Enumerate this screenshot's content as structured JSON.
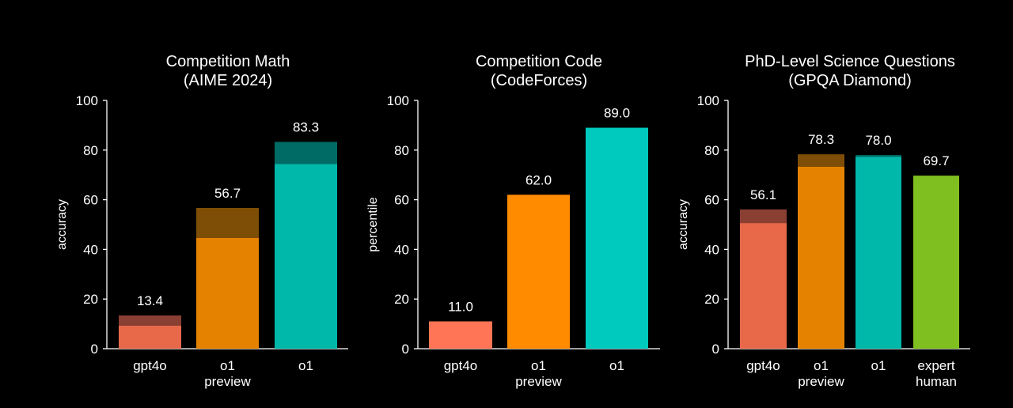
{
  "chart_data": [
    {
      "type": "bar",
      "title": [
        "Competition Math",
        "(AIME 2024)"
      ],
      "ylabel": "accuracy",
      "ylim": [
        0,
        100
      ],
      "yticks": [
        0,
        20,
        40,
        60,
        80,
        100
      ],
      "categories": [
        [
          "gpt4o"
        ],
        [
          "o1",
          "preview"
        ],
        [
          "o1"
        ]
      ],
      "values": [
        13.4,
        56.7,
        83.3
      ],
      "base_values": [
        9.3,
        44.6,
        74.4
      ],
      "value_labels": [
        "13.4",
        "56.7",
        "83.3"
      ],
      "colors": {
        "base": [
          "#e8684a",
          "#e58300",
          "#00b8aa"
        ],
        "top": [
          "#8a3f33",
          "#7e4d06",
          "#006b64"
        ]
      }
    },
    {
      "type": "bar",
      "title": [
        "Competition Code",
        "(CodeForces)"
      ],
      "ylabel": "percentile",
      "ylim": [
        0,
        100
      ],
      "yticks": [
        0,
        20,
        40,
        60,
        80,
        100
      ],
      "categories": [
        [
          "gpt4o"
        ],
        [
          "o1",
          "preview"
        ],
        [
          "o1"
        ]
      ],
      "values": [
        11.0,
        62.0,
        89.0
      ],
      "base_values": [
        11.0,
        62.0,
        89.0
      ],
      "value_labels": [
        "11.0",
        "62.0",
        "89.0"
      ],
      "colors": {
        "base": [
          "#ff7555",
          "#ff8c00",
          "#00c9bd"
        ],
        "top": [
          "#ff7555",
          "#ff8c00",
          "#00c9bd"
        ]
      }
    },
    {
      "type": "bar",
      "title": [
        "PhD-Level Science Questions",
        "(GPQA Diamond)"
      ],
      "ylabel": "accuracy",
      "ylim": [
        0,
        100
      ],
      "yticks": [
        0,
        20,
        40,
        60,
        80,
        100
      ],
      "categories": [
        [
          "gpt4o"
        ],
        [
          "o1",
          "preview"
        ],
        [
          "o1"
        ],
        [
          "expert",
          "human"
        ]
      ],
      "values": [
        56.1,
        78.3,
        78.0,
        69.7
      ],
      "base_values": [
        50.6,
        73.3,
        77.3,
        69.7
      ],
      "value_labels": [
        "56.1",
        "78.3",
        "78.0",
        "69.7"
      ],
      "colors": {
        "base": [
          "#e8684a",
          "#e58300",
          "#00b8aa",
          "#7fbf1f"
        ],
        "top": [
          "#8a3f33",
          "#7e4d06",
          "#006b64",
          "#7fbf1f"
        ]
      }
    }
  ]
}
